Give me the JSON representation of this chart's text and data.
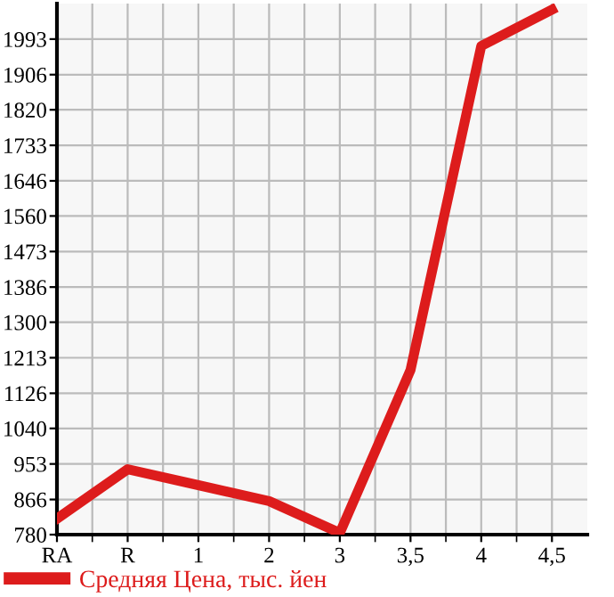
{
  "chart_data": {
    "type": "line",
    "categories": [
      "RA",
      "R",
      "1",
      "2",
      "3",
      "3,5",
      "4",
      "4,5"
    ],
    "series": [
      {
        "name": "Средняя Цена, тыс. йен",
        "color": "#dd1c1c",
        "values": [
          819,
          940,
          901,
          862,
          784,
          1183,
          1976,
          2065
        ]
      }
    ],
    "ylim": [
      780,
      2080
    ],
    "yticks": [
      780,
      866,
      953,
      1040,
      1126,
      1213,
      1300,
      1386,
      1473,
      1560,
      1646,
      1733,
      1820,
      1906,
      1993
    ],
    "grid": true,
    "legend": "bottom",
    "marker": "none",
    "line_style": "solid"
  }
}
